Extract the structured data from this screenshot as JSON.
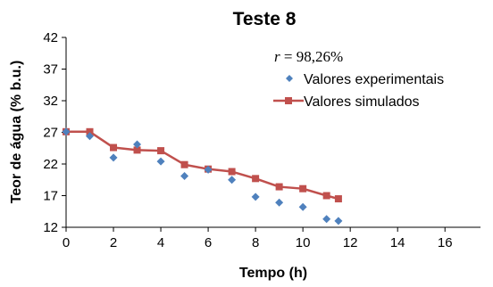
{
  "chart_data": {
    "type": "line",
    "title": "Teste 8",
    "xlabel": "Tempo (h)",
    "ylabel": "Teor de água (% b.u.)",
    "xlim": [
      0,
      17.5
    ],
    "ylim": [
      12,
      42
    ],
    "xticks": [
      0,
      2,
      4,
      6,
      8,
      10,
      12,
      14,
      16
    ],
    "yticks": [
      12,
      17,
      22,
      27,
      32,
      37,
      42
    ],
    "xtick_labels": [
      "0",
      "2",
      "4",
      "6",
      "8",
      "10",
      "12",
      "14",
      "16"
    ],
    "ytick_labels": [
      "12",
      "17",
      "22",
      "27",
      "32",
      "37",
      "42"
    ],
    "grid": false,
    "legend_position": "top-right",
    "annotation": {
      "symbol": "r",
      "text": " = 98,26%"
    },
    "series": [
      {
        "name": "Valores experimentais",
        "kind": "scatter",
        "marker": "diamond",
        "color": "#4f81bd",
        "x": [
          0,
          1,
          2,
          3,
          4,
          5,
          6,
          7,
          8,
          9,
          10,
          11,
          11.5
        ],
        "y": [
          27.1,
          26.4,
          23.0,
          25.1,
          22.4,
          20.1,
          21.1,
          19.5,
          16.8,
          15.9,
          15.2,
          13.3,
          13.0
        ]
      },
      {
        "name": "Valores simulados",
        "kind": "line",
        "marker": "square",
        "color": "#c0504d",
        "x": [
          0,
          1,
          2,
          3,
          4,
          5,
          6,
          7,
          8,
          9,
          10,
          11,
          11.5
        ],
        "y": [
          27.1,
          27.1,
          24.6,
          24.2,
          24.1,
          21.9,
          21.2,
          20.8,
          19.7,
          18.4,
          18.1,
          17.0,
          16.5
        ]
      }
    ]
  }
}
